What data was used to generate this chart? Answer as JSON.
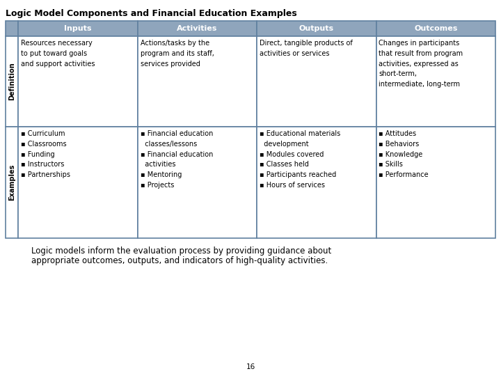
{
  "title": "Logic Model Components and Financial Education Examples",
  "background_color": "#ffffff",
  "table_bg": "#ffffff",
  "header_bg": "#8fa5bc",
  "header_text_color": "#ffffff",
  "cell_border_color": "#6080a0",
  "headers": [
    "Inputs",
    "Activities",
    "Outputs",
    "Outcomes"
  ],
  "row_labels": [
    "Definition",
    "Examples"
  ],
  "definition_row": [
    "Resources necessary\nto put toward goals\nand support activities",
    "Actions/tasks by the\nprogram and its staff,\nservices provided",
    "Direct, tangible products of\nactivities or services",
    "Changes in participants\nthat result from program\nactivities, expressed as\nshort-term,\nintermediate, long-term"
  ],
  "examples_row": [
    "▪ Curriculum\n▪ Classrooms\n▪ Funding\n▪ Instructors\n▪ Partnerships",
    "▪ Financial education\n  classes/lessons\n▪ Financial education\n  activities\n▪ Mentoring\n▪ Projects",
    "▪ Educational materials\n  development\n▪ Modules covered\n▪ Classes held\n▪ Participants reached\n▪ Hours of services",
    "▪ Attitudes\n▪ Behaviors\n▪ Knowledge\n▪ Skills\n▪ Performance"
  ],
  "footer_line1": "Logic models inform the evaluation process by providing guidance about",
  "footer_line2": "appropriate outcomes, outputs, and indicators of high-quality activities.",
  "page_number": "16",
  "title_fontsize": 9,
  "header_fontsize": 8,
  "cell_fontsize": 7,
  "row_label_fontsize": 7,
  "footer_fontsize": 8.5
}
